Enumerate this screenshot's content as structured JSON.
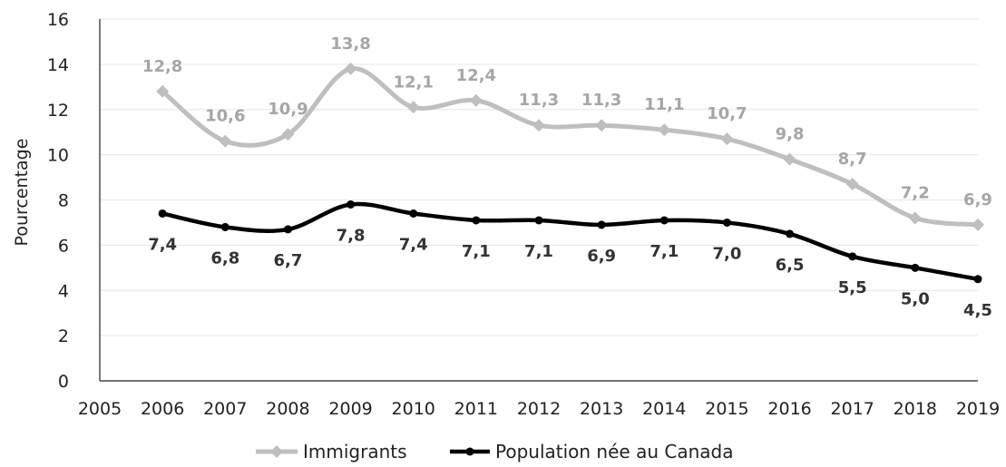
{
  "chart_data": {
    "type": "line",
    "ylabel": "Pourcentage",
    "xlabel": "",
    "title": "",
    "xlim": [
      2005,
      2019
    ],
    "ylim": [
      0,
      16
    ],
    "x_ticks": [
      "2005",
      "2006",
      "2007",
      "2008",
      "2009",
      "2010",
      "2011",
      "2012",
      "2013",
      "2014",
      "2015",
      "2016",
      "2017",
      "2018",
      "2019"
    ],
    "y_ticks": [
      "0",
      "2",
      "4",
      "6",
      "8",
      "10",
      "12",
      "14",
      "16"
    ],
    "x": [
      2006,
      2007,
      2008,
      2009,
      2010,
      2011,
      2012,
      2013,
      2014,
      2015,
      2016,
      2017,
      2018,
      2019
    ],
    "grid": "horizontal",
    "legend_position": "bottom",
    "series": [
      {
        "name": "Immigrants",
        "color": "#bfbfbf",
        "marker": "diamond",
        "values": [
          12.8,
          10.6,
          10.9,
          13.8,
          12.1,
          12.4,
          11.3,
          11.3,
          11.1,
          10.7,
          9.8,
          8.7,
          7.2,
          6.9
        ],
        "labels": [
          "12,8",
          "10,6",
          "10,9",
          "13,8",
          "12,1",
          "12,4",
          "11,3",
          "11,3",
          "11,1",
          "10,7",
          "9,8",
          "8,7",
          "7,2",
          "6,9"
        ]
      },
      {
        "name": "Population née au Canada",
        "color": "#000000",
        "marker": "circle",
        "values": [
          7.4,
          6.8,
          6.7,
          7.8,
          7.4,
          7.1,
          7.1,
          6.9,
          7.1,
          7.0,
          6.5,
          5.5,
          5.0,
          4.5
        ],
        "labels": [
          "7,4",
          "6,8",
          "6,7",
          "7,8",
          "7,4",
          "7,1",
          "7,1",
          "6,9",
          "7,1",
          "7,0",
          "6,5",
          "5,5",
          "5,0",
          "4,5"
        ]
      }
    ]
  }
}
